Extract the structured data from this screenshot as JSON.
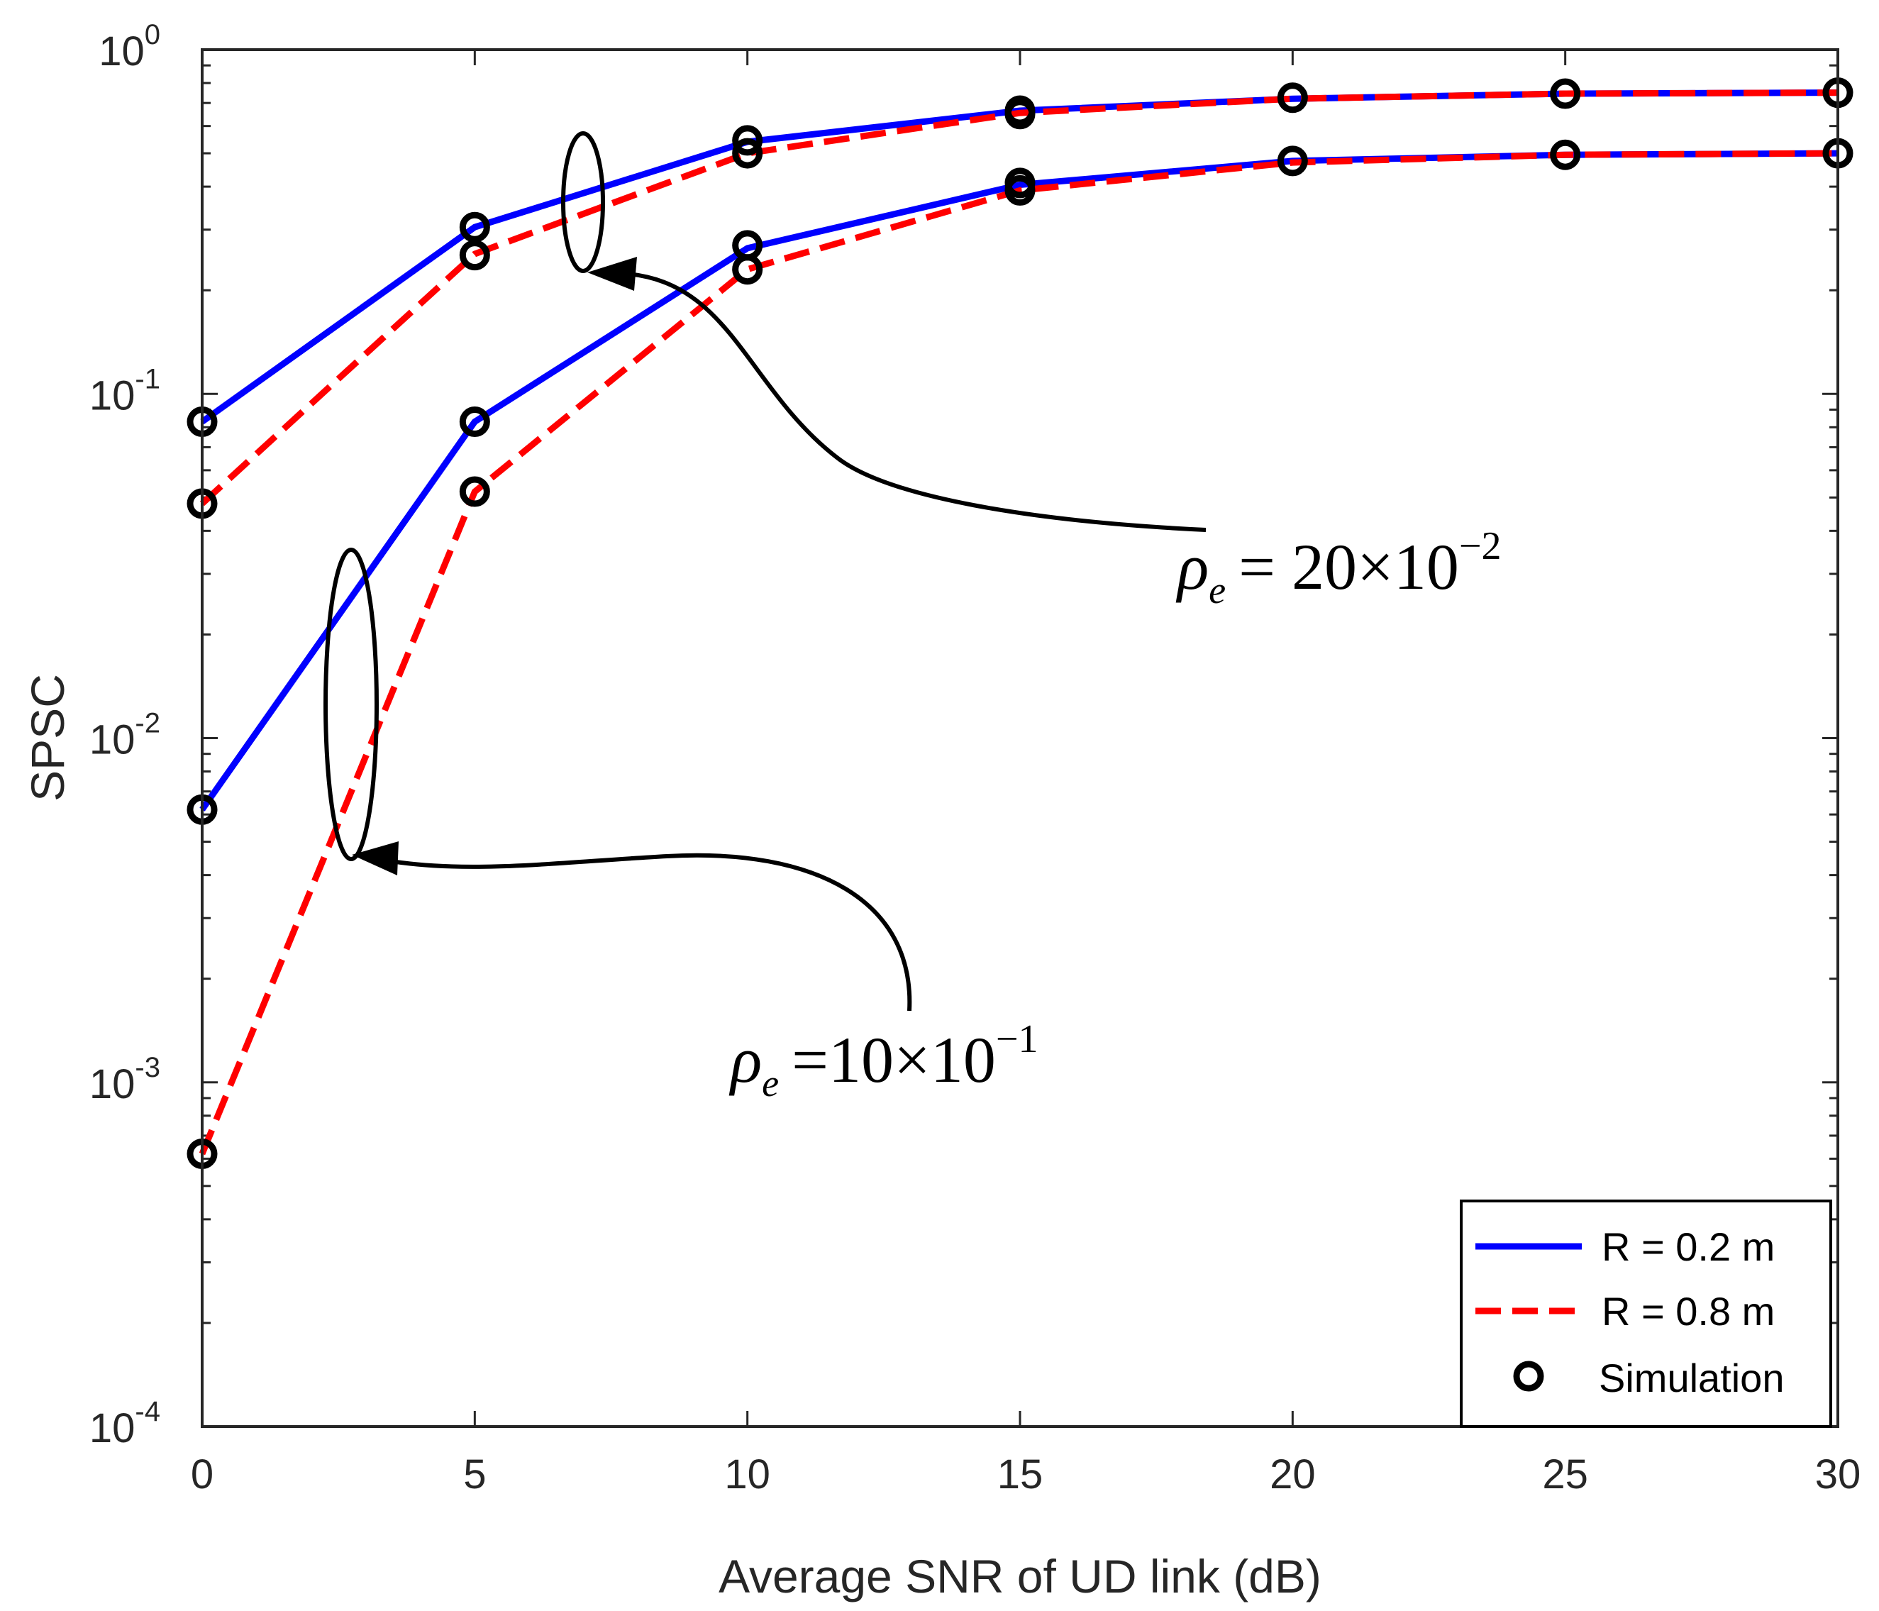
{
  "chart_data": {
    "type": "line",
    "title": "",
    "xlabel": "Average SNR of UD link (dB)",
    "ylabel": "SPSC",
    "xlim": [
      0,
      30
    ],
    "ylim": [
      0.0001,
      1
    ],
    "yscale": "log",
    "xticks": [
      0,
      5,
      10,
      15,
      20,
      25,
      30
    ],
    "xtick_labels": [
      "0",
      "5",
      "10",
      "15",
      "20",
      "25",
      "30"
    ],
    "yticks": [
      {
        "value": 1,
        "base": "10",
        "exp": "0"
      },
      {
        "value": 0.1,
        "base": "10",
        "exp": "-1"
      },
      {
        "value": 0.01,
        "base": "10",
        "exp": "-2"
      },
      {
        "value": 0.001,
        "base": "10",
        "exp": "-3"
      },
      {
        "value": 0.0001,
        "base": "10",
        "exp": "-4"
      }
    ],
    "grid": false,
    "legend_position": "bottom-right",
    "colors": {
      "blue": "#0000ff",
      "red": "#ff0000",
      "marker": "#000000"
    },
    "series": [
      {
        "name": "R = 0.2 m",
        "group": "rho_e = 20x10^-2",
        "style": "solid",
        "color": "#0000ff",
        "x": [
          0,
          5,
          10,
          15,
          20,
          25,
          30
        ],
        "y": [
          0.083,
          0.305,
          0.54,
          0.665,
          0.72,
          0.745,
          0.75
        ]
      },
      {
        "name": "R = 0.8 m",
        "group": "rho_e = 20x10^-2",
        "style": "dashed",
        "color": "#ff0000",
        "x": [
          0,
          5,
          10,
          15,
          20,
          25,
          30
        ],
        "y": [
          0.048,
          0.255,
          0.5,
          0.655,
          0.72,
          0.745,
          0.75
        ]
      },
      {
        "name": "R = 0.2 m",
        "group": "rho_e = 10x10^-1",
        "style": "solid",
        "color": "#0000ff",
        "x": [
          0,
          5,
          10,
          15,
          20,
          25,
          30
        ],
        "y": [
          0.0062,
          0.083,
          0.265,
          0.405,
          0.475,
          0.495,
          0.5
        ]
      },
      {
        "name": "R = 0.8 m",
        "group": "rho_e = 10x10^-1",
        "style": "dashed",
        "color": "#ff0000",
        "x": [
          0,
          5,
          10,
          15,
          20,
          25,
          30
        ],
        "y": [
          0.00062,
          0.052,
          0.23,
          0.39,
          0.47,
          0.495,
          0.5
        ]
      }
    ],
    "simulation_markers": {
      "name": "Simulation",
      "points": [
        {
          "x": 0,
          "y": 0.083
        },
        {
          "x": 5,
          "y": 0.305
        },
        {
          "x": 10,
          "y": 0.545
        },
        {
          "x": 15,
          "y": 0.665
        },
        {
          "x": 20,
          "y": 0.725
        },
        {
          "x": 25,
          "y": 0.745
        },
        {
          "x": 30,
          "y": 0.75
        },
        {
          "x": 0,
          "y": 0.048
        },
        {
          "x": 5,
          "y": 0.253
        },
        {
          "x": 10,
          "y": 0.5
        },
        {
          "x": 15,
          "y": 0.65
        },
        {
          "x": 0,
          "y": 0.0062
        },
        {
          "x": 5,
          "y": 0.083
        },
        {
          "x": 10,
          "y": 0.27
        },
        {
          "x": 15,
          "y": 0.41
        },
        {
          "x": 20,
          "y": 0.475
        },
        {
          "x": 25,
          "y": 0.495
        },
        {
          "x": 30,
          "y": 0.5
        },
        {
          "x": 0,
          "y": 0.00062
        },
        {
          "x": 5,
          "y": 0.052
        },
        {
          "x": 10,
          "y": 0.23
        },
        {
          "x": 15,
          "y": 0.39
        }
      ]
    },
    "legend": [
      {
        "label": "R = 0.2 m",
        "style": "solid",
        "color": "#0000ff"
      },
      {
        "label": "R = 0.8 m",
        "style": "dashed",
        "color": "#ff0000"
      },
      {
        "label": "Simulation",
        "style": "marker",
        "color": "#000000"
      }
    ],
    "annotations": [
      {
        "id": "upper",
        "symbol": "ρ",
        "subscript": "e",
        "text": "= 20×10",
        "exp": "−2"
      },
      {
        "id": "lower",
        "symbol": "ρ",
        "subscript": "e",
        "text": "=10×10",
        "exp": "−1"
      }
    ]
  }
}
